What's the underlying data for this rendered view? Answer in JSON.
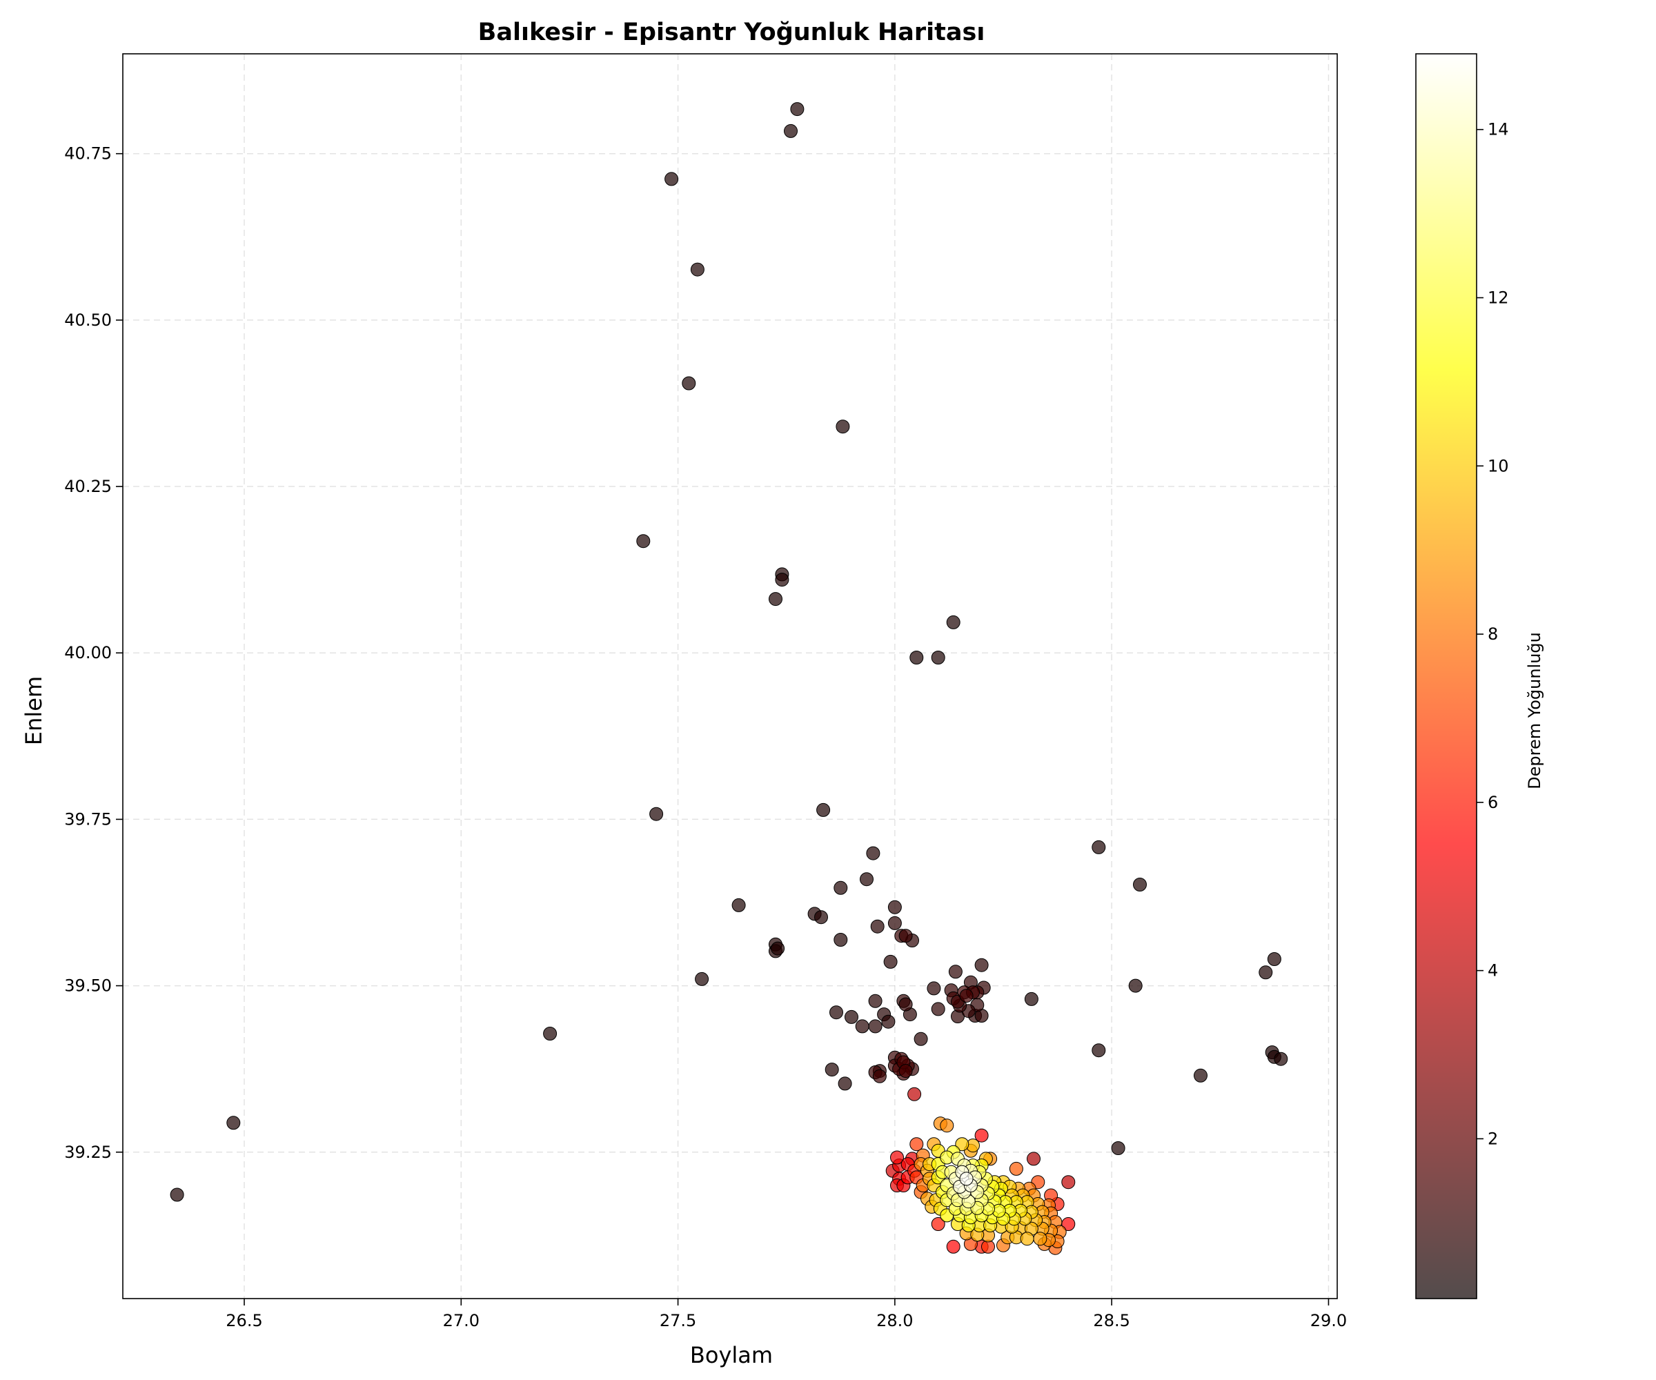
{
  "chart_data": {
    "type": "scatter",
    "title": "Balıkesir - Episantr Yoğunluk Haritası",
    "xlabel": "Boylam",
    "ylabel": "Enlem",
    "xlim": [
      26.22,
      29.02
    ],
    "ylim": [
      39.03,
      40.9
    ],
    "xticks": [
      26.5,
      27.0,
      27.5,
      28.0,
      28.5,
      29.0
    ],
    "xtick_labels": [
      "26.5",
      "27.0",
      "27.5",
      "28.0",
      "28.5",
      "29.0"
    ],
    "yticks": [
      39.25,
      39.5,
      39.75,
      40.0,
      40.25,
      40.5,
      40.75
    ],
    "ytick_labels": [
      "39.25",
      "39.50",
      "39.75",
      "40.00",
      "40.25",
      "40.50",
      "40.75"
    ],
    "grid": true,
    "colormap": "hot",
    "colorbar": {
      "label": "Deprem Yoğunluğu",
      "range": [
        0.1,
        14.9
      ],
      "ticks": [
        2,
        4,
        6,
        8,
        10,
        12,
        14
      ],
      "tick_labels": [
        "2",
        "4",
        "6",
        "8",
        "10",
        "12",
        "14"
      ]
    },
    "points": [
      [
        27.775,
        40.817,
        0.1
      ],
      [
        27.76,
        40.784,
        0.1
      ],
      [
        27.485,
        40.712,
        0.1
      ],
      [
        27.545,
        40.576,
        0.1
      ],
      [
        27.525,
        40.405,
        0.1
      ],
      [
        27.88,
        40.34,
        0.1
      ],
      [
        27.42,
        40.168,
        0.1
      ],
      [
        27.74,
        40.118,
        0.2
      ],
      [
        27.74,
        40.11,
        0.2
      ],
      [
        27.725,
        40.081,
        0.1
      ],
      [
        28.135,
        40.046,
        0.1
      ],
      [
        28.05,
        39.993,
        0.1
      ],
      [
        28.1,
        39.993,
        0.1
      ],
      [
        27.45,
        39.758,
        0.1
      ],
      [
        27.835,
        39.764,
        0.1
      ],
      [
        28.47,
        39.708,
        0.1
      ],
      [
        28.565,
        39.652,
        0.1
      ],
      [
        27.95,
        39.699,
        0.2
      ],
      [
        27.935,
        39.66,
        0.2
      ],
      [
        27.875,
        39.647,
        0.2
      ],
      [
        27.64,
        39.621,
        0.1
      ],
      [
        27.815,
        39.608,
        0.2
      ],
      [
        27.83,
        39.603,
        0.2
      ],
      [
        28.0,
        39.618,
        0.3
      ],
      [
        28.0,
        39.594,
        0.4
      ],
      [
        27.96,
        39.589,
        0.3
      ],
      [
        28.015,
        39.575,
        0.8
      ],
      [
        28.025,
        39.575,
        0.8
      ],
      [
        28.04,
        39.568,
        0.5
      ],
      [
        27.875,
        39.569,
        0.2
      ],
      [
        27.725,
        39.562,
        0.2
      ],
      [
        27.725,
        39.552,
        0.2
      ],
      [
        27.73,
        39.556,
        0.2
      ],
      [
        27.555,
        39.51,
        0.1
      ],
      [
        27.99,
        39.536,
        0.3
      ],
      [
        28.2,
        39.531,
        0.4
      ],
      [
        28.14,
        39.521,
        0.5
      ],
      [
        28.175,
        39.505,
        0.6
      ],
      [
        28.09,
        39.496,
        0.4
      ],
      [
        28.13,
        39.493,
        0.7
      ],
      [
        28.16,
        39.49,
        1.0
      ],
      [
        28.18,
        39.49,
        1.0
      ],
      [
        28.19,
        39.49,
        0.9
      ],
      [
        28.205,
        39.497,
        0.6
      ],
      [
        28.135,
        39.481,
        0.9
      ],
      [
        28.145,
        39.476,
        0.9
      ],
      [
        28.15,
        39.47,
        0.7
      ],
      [
        28.165,
        39.485,
        1.0
      ],
      [
        28.19,
        39.471,
        0.6
      ],
      [
        28.17,
        39.462,
        0.6
      ],
      [
        28.185,
        39.455,
        0.5
      ],
      [
        28.2,
        39.455,
        0.5
      ],
      [
        28.145,
        39.454,
        0.5
      ],
      [
        28.1,
        39.465,
        0.5
      ],
      [
        28.315,
        39.48,
        0.1
      ],
      [
        28.555,
        39.5,
        0.1
      ],
      [
        28.855,
        39.52,
        0.1
      ],
      [
        28.875,
        39.54,
        0.1
      ],
      [
        27.955,
        39.477,
        0.3
      ],
      [
        28.02,
        39.477,
        0.6
      ],
      [
        28.025,
        39.472,
        0.6
      ],
      [
        28.035,
        39.457,
        0.4
      ],
      [
        27.865,
        39.46,
        0.2
      ],
      [
        27.9,
        39.453,
        0.2
      ],
      [
        27.975,
        39.457,
        0.3
      ],
      [
        27.985,
        39.446,
        0.3
      ],
      [
        27.925,
        39.439,
        0.3
      ],
      [
        27.955,
        39.439,
        0.3
      ],
      [
        28.06,
        39.42,
        0.4
      ],
      [
        27.205,
        39.428,
        0.1
      ],
      [
        28.47,
        39.403,
        0.1
      ],
      [
        28.87,
        39.4,
        0.1
      ],
      [
        28.875,
        39.393,
        0.1
      ],
      [
        28.89,
        39.39,
        0.1
      ],
      [
        28.705,
        39.365,
        0.1
      ],
      [
        28.0,
        39.392,
        0.8
      ],
      [
        28.015,
        39.39,
        1.0
      ],
      [
        28.02,
        39.385,
        1.2
      ],
      [
        28.03,
        39.38,
        1.0
      ],
      [
        28.01,
        39.375,
        1.1
      ],
      [
        28.025,
        39.372,
        1.2
      ],
      [
        28.04,
        39.375,
        0.8
      ],
      [
        28.02,
        39.368,
        1.0
      ],
      [
        28.0,
        39.38,
        0.9
      ],
      [
        27.955,
        39.37,
        0.8
      ],
      [
        27.965,
        39.364,
        0.9
      ],
      [
        27.965,
        39.372,
        0.7
      ],
      [
        27.855,
        39.374,
        0.2
      ],
      [
        27.885,
        39.353,
        0.2
      ],
      [
        28.045,
        39.337,
        4.0
      ],
      [
        26.475,
        39.294,
        0.1
      ],
      [
        26.345,
        39.186,
        0.1
      ],
      [
        28.515,
        39.256,
        0.1
      ],
      [
        28.105,
        39.293,
        8.5
      ],
      [
        28.12,
        39.29,
        8.5
      ],
      [
        28.2,
        39.275,
        5.5
      ],
      [
        28.05,
        39.262,
        6.8
      ],
      [
        28.09,
        39.262,
        9.0
      ],
      [
        28.155,
        39.262,
        10.0
      ],
      [
        28.18,
        39.26,
        9.5
      ],
      [
        28.175,
        39.252,
        9.0
      ],
      [
        28.1,
        39.252,
        10.5
      ],
      [
        28.135,
        39.25,
        11.5
      ],
      [
        28.04,
        39.24,
        5.0
      ],
      [
        28.065,
        39.245,
        8.0
      ],
      [
        28.12,
        39.242,
        12.0
      ],
      [
        28.145,
        39.24,
        13.0
      ],
      [
        28.21,
        39.24,
        9.5
      ],
      [
        28.22,
        39.24,
        8.5
      ],
      [
        28.32,
        39.24,
        3.5
      ],
      [
        28.005,
        39.242,
        5.2
      ],
      [
        28.01,
        39.23,
        5.0
      ],
      [
        28.03,
        39.232,
        5.2
      ],
      [
        28.06,
        39.232,
        8.5
      ],
      [
        28.08,
        39.232,
        10.0
      ],
      [
        28.1,
        39.232,
        11.0
      ],
      [
        28.16,
        39.23,
        13.5
      ],
      [
        28.18,
        39.23,
        12.0
      ],
      [
        28.2,
        39.23,
        11.0
      ],
      [
        27.995,
        39.222,
        4.5
      ],
      [
        28.045,
        39.222,
        6.0
      ],
      [
        28.075,
        39.222,
        9.0
      ],
      [
        28.11,
        39.22,
        12.0
      ],
      [
        28.13,
        39.22,
        13.0
      ],
      [
        28.155,
        39.22,
        14.5
      ],
      [
        28.175,
        39.222,
        14.0
      ],
      [
        28.195,
        39.22,
        12.5
      ],
      [
        28.28,
        39.225,
        7.5
      ],
      [
        28.01,
        39.21,
        5.0
      ],
      [
        28.03,
        39.212,
        5.5
      ],
      [
        28.05,
        39.212,
        6.5
      ],
      [
        28.08,
        39.21,
        9.0
      ],
      [
        28.1,
        39.212,
        11.0
      ],
      [
        28.14,
        39.21,
        14.0
      ],
      [
        28.165,
        39.21,
        14.8
      ],
      [
        28.185,
        39.212,
        14.0
      ],
      [
        28.21,
        39.21,
        12.0
      ],
      [
        28.23,
        39.205,
        10.5
      ],
      [
        28.25,
        39.205,
        10.0
      ],
      [
        28.33,
        39.205,
        7.0
      ],
      [
        28.4,
        39.205,
        4.0
      ],
      [
        28.005,
        39.2,
        5.0
      ],
      [
        28.02,
        39.2,
        5.2
      ],
      [
        28.065,
        39.2,
        8.0
      ],
      [
        28.09,
        39.2,
        10.0
      ],
      [
        28.12,
        39.2,
        12.5
      ],
      [
        28.15,
        39.198,
        14.5
      ],
      [
        28.175,
        39.2,
        14.5
      ],
      [
        28.2,
        39.2,
        13.0
      ],
      [
        28.225,
        39.198,
        11.5
      ],
      [
        28.245,
        39.195,
        11.0
      ],
      [
        28.265,
        39.198,
        10.0
      ],
      [
        28.285,
        39.195,
        9.0
      ],
      [
        28.31,
        39.195,
        8.0
      ],
      [
        28.06,
        39.19,
        7.5
      ],
      [
        28.11,
        39.19,
        11.0
      ],
      [
        28.135,
        39.188,
        13.0
      ],
      [
        28.16,
        39.19,
        14.0
      ],
      [
        28.19,
        39.19,
        13.5
      ],
      [
        28.215,
        39.188,
        12.0
      ],
      [
        28.24,
        39.185,
        11.0
      ],
      [
        28.27,
        39.185,
        10.0
      ],
      [
        28.295,
        39.185,
        9.5
      ],
      [
        28.32,
        39.185,
        8.5
      ],
      [
        28.36,
        39.185,
        6.5
      ],
      [
        28.075,
        39.18,
        9.0
      ],
      [
        28.095,
        39.178,
        10.0
      ],
      [
        28.12,
        39.178,
        12.0
      ],
      [
        28.145,
        39.178,
        13.0
      ],
      [
        28.17,
        39.176,
        13.5
      ],
      [
        28.2,
        39.178,
        12.5
      ],
      [
        28.23,
        39.176,
        11.5
      ],
      [
        28.255,
        39.175,
        11.0
      ],
      [
        28.28,
        39.175,
        10.5
      ],
      [
        28.305,
        39.175,
        10.0
      ],
      [
        28.33,
        39.172,
        9.0
      ],
      [
        28.355,
        39.17,
        8.0
      ],
      [
        28.375,
        39.172,
        6.0
      ],
      [
        28.085,
        39.168,
        9.5
      ],
      [
        28.105,
        39.165,
        10.5
      ],
      [
        28.14,
        39.165,
        12.0
      ],
      [
        28.165,
        39.165,
        12.5
      ],
      [
        28.19,
        39.166,
        12.5
      ],
      [
        28.215,
        39.165,
        12.0
      ],
      [
        28.24,
        39.162,
        11.5
      ],
      [
        28.265,
        39.162,
        11.0
      ],
      [
        28.29,
        39.162,
        10.5
      ],
      [
        28.315,
        39.16,
        10.0
      ],
      [
        28.34,
        39.16,
        9.0
      ],
      [
        28.36,
        39.158,
        8.0
      ],
      [
        28.12,
        39.155,
        11.0
      ],
      [
        28.15,
        39.155,
        11.5
      ],
      [
        28.175,
        39.152,
        11.5
      ],
      [
        28.2,
        39.155,
        11.5
      ],
      [
        28.225,
        39.152,
        11.0
      ],
      [
        28.25,
        39.15,
        11.0
      ],
      [
        28.275,
        39.15,
        10.5
      ],
      [
        28.3,
        39.15,
        10.0
      ],
      [
        28.325,
        39.148,
        9.5
      ],
      [
        28.345,
        39.145,
        9.0
      ],
      [
        28.37,
        39.145,
        8.0
      ],
      [
        28.4,
        39.142,
        5.5
      ],
      [
        28.1,
        39.142,
        6.0
      ],
      [
        28.145,
        39.142,
        10.5
      ],
      [
        28.17,
        39.14,
        11.0
      ],
      [
        28.195,
        39.14,
        10.5
      ],
      [
        28.22,
        39.14,
        10.5
      ],
      [
        28.245,
        39.138,
        10.0
      ],
      [
        28.27,
        39.138,
        10.0
      ],
      [
        28.29,
        39.136,
        9.5
      ],
      [
        28.315,
        39.135,
        9.5
      ],
      [
        28.34,
        39.135,
        9.0
      ],
      [
        28.36,
        39.132,
        8.5
      ],
      [
        28.38,
        39.13,
        8.0
      ],
      [
        28.165,
        39.128,
        9.0
      ],
      [
        28.19,
        39.126,
        9.5
      ],
      [
        28.215,
        39.125,
        9.0
      ],
      [
        28.26,
        39.122,
        9.0
      ],
      [
        28.28,
        39.122,
        9.5
      ],
      [
        28.305,
        39.12,
        9.5
      ],
      [
        28.335,
        39.12,
        9.0
      ],
      [
        28.355,
        39.118,
        8.5
      ],
      [
        28.375,
        39.116,
        8.0
      ],
      [
        28.135,
        39.108,
        5.5
      ],
      [
        28.175,
        39.112,
        7.0
      ],
      [
        28.2,
        39.108,
        6.0
      ],
      [
        28.215,
        39.108,
        6.5
      ],
      [
        28.25,
        39.11,
        8.0
      ],
      [
        28.345,
        39.112,
        8.0
      ],
      [
        28.37,
        39.106,
        7.5
      ]
    ]
  }
}
